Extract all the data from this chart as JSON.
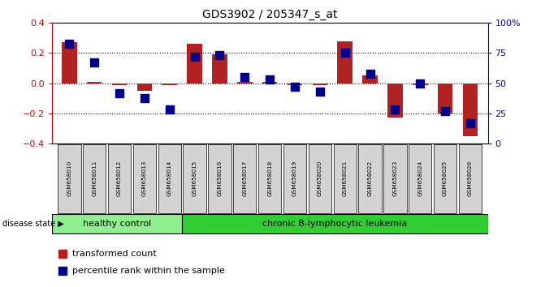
{
  "title": "GDS3902 / 205347_s_at",
  "samples": [
    "GSM658010",
    "GSM658011",
    "GSM658012",
    "GSM658013",
    "GSM658014",
    "GSM658015",
    "GSM658016",
    "GSM658017",
    "GSM658018",
    "GSM658019",
    "GSM658020",
    "GSM658021",
    "GSM658022",
    "GSM658023",
    "GSM658024",
    "GSM658025",
    "GSM658026"
  ],
  "transformed_count": [
    0.27,
    0.01,
    -0.01,
    -0.05,
    -0.01,
    0.26,
    0.19,
    0.01,
    0.01,
    -0.01,
    -0.01,
    0.28,
    0.05,
    -0.23,
    -0.01,
    -0.2,
    -0.35
  ],
  "percentile_rank": [
    83,
    67,
    42,
    38,
    28,
    72,
    73,
    55,
    53,
    47,
    43,
    75,
    58,
    28,
    50,
    27,
    17
  ],
  "bar_color": "#b22222",
  "dot_color": "#00008b",
  "healthy_control_count": 5,
  "group_labels": [
    "healthy control",
    "chronic B-lymphocytic leukemia"
  ],
  "group_color_hc": "#90ee90",
  "group_color_cll": "#32cd32",
  "disease_state_label": "disease state",
  "legend_items": [
    "transformed count",
    "percentile rank within the sample"
  ],
  "ylim_left": [
    -0.4,
    0.4
  ],
  "ylim_right": [
    0,
    100
  ],
  "yticks_left": [
    -0.4,
    -0.2,
    0.0,
    0.2,
    0.4
  ],
  "yticks_right": [
    0,
    25,
    50,
    75,
    100
  ],
  "hlines": [
    0.2,
    0.0,
    -0.2
  ],
  "bg_color": "#ffffff",
  "left_tick_color": "#cc0000",
  "right_tick_color": "#0000cc",
  "label_box_color": "#d3d3d3"
}
